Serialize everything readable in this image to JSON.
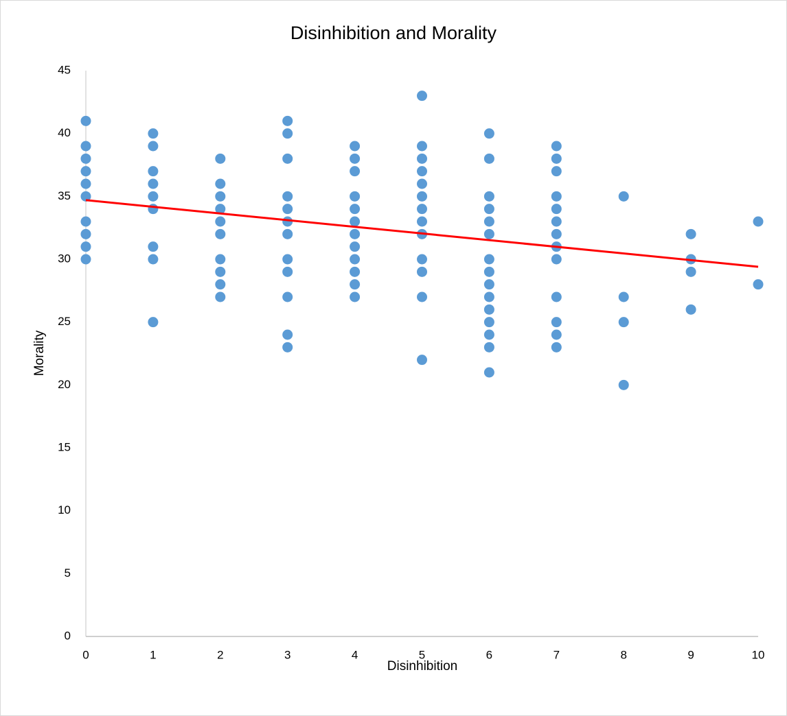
{
  "chart_data": {
    "type": "scatter",
    "title": "Disinhibition and Morality",
    "x_label": "Disinhibition",
    "y_label": "Morality",
    "x": [
      0,
      0,
      0,
      0,
      0,
      0,
      0,
      0,
      0,
      0,
      1,
      1,
      1,
      1,
      1,
      1,
      1,
      1,
      1,
      2,
      2,
      2,
      2,
      2,
      2,
      2,
      2,
      2,
      2,
      3,
      3,
      3,
      3,
      3,
      3,
      3,
      3,
      3,
      3,
      3,
      3,
      4,
      4,
      4,
      4,
      4,
      4,
      4,
      4,
      4,
      4,
      4,
      4,
      5,
      5,
      5,
      5,
      5,
      5,
      5,
      5,
      5,
      5,
      5,
      5,
      5,
      6,
      6,
      6,
      6,
      6,
      6,
      6,
      6,
      6,
      6,
      6,
      6,
      6,
      6,
      6,
      7,
      7,
      7,
      7,
      7,
      7,
      7,
      7,
      7,
      7,
      7,
      7,
      7,
      8,
      8,
      8,
      8,
      9,
      9,
      9,
      9,
      10,
      10
    ],
    "y": [
      41,
      39,
      38,
      37,
      36,
      35,
      33,
      32,
      31,
      30,
      40,
      39,
      37,
      36,
      35,
      34,
      31,
      30,
      25,
      38,
      36,
      35,
      34,
      33,
      32,
      30,
      29,
      28,
      27,
      41,
      40,
      38,
      35,
      34,
      33,
      32,
      30,
      29,
      27,
      24,
      23,
      39,
      38,
      37,
      35,
      34,
      33,
      32,
      31,
      30,
      29,
      28,
      27,
      43,
      39,
      38,
      37,
      36,
      35,
      34,
      33,
      32,
      30,
      29,
      27,
      22,
      40,
      38,
      35,
      34,
      33,
      32,
      30,
      29,
      28,
      27,
      26,
      25,
      24,
      23,
      21,
      39,
      38,
      37,
      35,
      34,
      33,
      32,
      31,
      30,
      27,
      25,
      24,
      23,
      35,
      27,
      25,
      20,
      32,
      30,
      29,
      26,
      33,
      28
    ],
    "color": "#5b9bd5",
    "trendline": {
      "x": [
        0,
        10
      ],
      "y": [
        34.7,
        29.4
      ],
      "color": "#ff0000"
    },
    "xlim": [
      0,
      10
    ],
    "xticks": [
      0,
      1,
      2,
      3,
      4,
      5,
      6,
      7,
      8,
      9,
      10
    ],
    "ylim": [
      0,
      45
    ],
    "yticks": [
      0,
      5,
      10,
      15,
      20,
      25,
      30,
      35,
      40,
      45
    ],
    "grid": false
  }
}
